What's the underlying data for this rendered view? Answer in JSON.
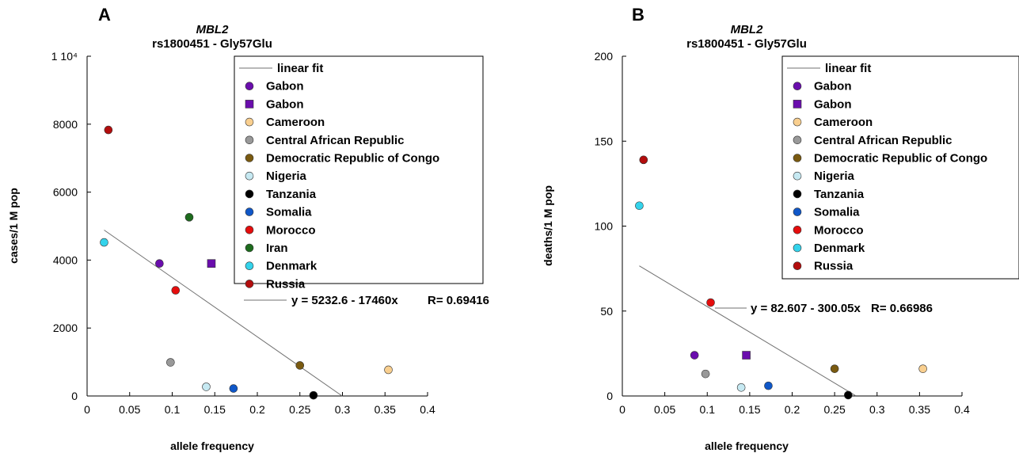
{
  "legend_items": [
    {
      "label": "linear fit",
      "marker": "line",
      "color": "#707070"
    },
    {
      "label": "Gabon",
      "marker": "circle",
      "color": "#6a0dad"
    },
    {
      "label": "Gabon",
      "marker": "square",
      "color": "#6a0dad"
    },
    {
      "label": "Cameroon",
      "marker": "circle",
      "color": "#f9cf8f"
    },
    {
      "label": "Central African Republic",
      "marker": "circle",
      "color": "#999999"
    },
    {
      "label": "Democratic Republic of Congo",
      "marker": "circle",
      "color": "#7a5a10"
    },
    {
      "label": "Nigeria",
      "marker": "circle",
      "color": "#c6e9f2"
    },
    {
      "label": "Tanzania",
      "marker": "circle",
      "color": "#000000"
    },
    {
      "label": "Somalia",
      "marker": "circle",
      "color": "#0f57c8"
    },
    {
      "label": "Morocco",
      "marker": "circle",
      "color": "#e50d0d"
    },
    {
      "label": "Iran",
      "marker": "circle",
      "color": "#1d6b1d"
    },
    {
      "label": "Denmark",
      "marker": "circle",
      "color": "#34d3eb"
    },
    {
      "label": "Russia",
      "marker": "circle",
      "color": "#b30d0d"
    }
  ],
  "chart_data": [
    {
      "panel": "A",
      "type": "scatter",
      "title_line1": "MBL2",
      "title_line2": "rs1800451 - Gly57Glu",
      "xlabel": "allele frequency",
      "ylabel": "cases/1 M pop",
      "xlim": [
        0,
        0.4
      ],
      "ylim": [
        0,
        10000
      ],
      "xticks": [
        "0",
        "0.05",
        "0.1",
        "0.15",
        "0.2",
        "0.25",
        "0.3",
        "0.35",
        "0.4"
      ],
      "yticks": [
        "0",
        "2000",
        "4000",
        "6000",
        "8000",
        "1 10⁴"
      ],
      "legend_placement": "top-right",
      "grid": false,
      "fit_equation": "y = 5232.6 - 17460x",
      "fit_r": "R= 0.69416",
      "fit": {
        "intercept": 5232.6,
        "slope": -17460,
        "x_start": 0.02,
        "x_end": 0.3
      },
      "points": [
        {
          "series": "Gabon",
          "marker": "circle",
          "x": 0.085,
          "y": 3900
        },
        {
          "series": "Gabon",
          "marker": "square",
          "x": 0.146,
          "y": 3900
        },
        {
          "series": "Cameroon",
          "marker": "circle",
          "x": 0.354,
          "y": 770
        },
        {
          "series": "Central African Republic",
          "marker": "circle",
          "x": 0.098,
          "y": 990
        },
        {
          "series": "Democratic Republic of Congo",
          "marker": "circle",
          "x": 0.25,
          "y": 900
        },
        {
          "series": "Nigeria",
          "marker": "circle",
          "x": 0.14,
          "y": 270
        },
        {
          "series": "Tanzania",
          "marker": "circle",
          "x": 0.266,
          "y": 20
        },
        {
          "series": "Somalia",
          "marker": "circle",
          "x": 0.172,
          "y": 220
        },
        {
          "series": "Morocco",
          "marker": "circle",
          "x": 0.104,
          "y": 3110
        },
        {
          "series": "Iran",
          "marker": "circle",
          "x": 0.12,
          "y": 5260
        },
        {
          "series": "Denmark",
          "marker": "circle",
          "x": 0.02,
          "y": 4520
        },
        {
          "series": "Russia",
          "marker": "circle",
          "x": 0.025,
          "y": 7830
        }
      ]
    },
    {
      "panel": "B",
      "type": "scatter",
      "title_line1": "MBL2",
      "title_line2": "rs1800451 - Gly57Glu",
      "xlabel": "allele frequency",
      "ylabel": "deaths/1 M pop",
      "xlim": [
        0,
        0.4
      ],
      "ylim": [
        0,
        200
      ],
      "xticks": [
        "0",
        "0.05",
        "0.1",
        "0.15",
        "0.2",
        "0.25",
        "0.3",
        "0.35",
        "0.4"
      ],
      "yticks": [
        "0",
        "50",
        "100",
        "150",
        "200"
      ],
      "legend_placement": "top-right",
      "grid": false,
      "fit_equation": "y = 82.607 - 300.05x",
      "fit_r": "R= 0.66986",
      "fit": {
        "intercept": 82.607,
        "slope": -300.05,
        "x_start": 0.02,
        "x_end": 0.275
      },
      "points": [
        {
          "series": "Gabon",
          "marker": "circle",
          "x": 0.085,
          "y": 24
        },
        {
          "series": "Gabon",
          "marker": "square",
          "x": 0.146,
          "y": 24
        },
        {
          "series": "Cameroon",
          "marker": "circle",
          "x": 0.354,
          "y": 16
        },
        {
          "series": "Central African Republic",
          "marker": "circle",
          "x": 0.098,
          "y": 13
        },
        {
          "series": "Democratic Republic of Congo",
          "marker": "circle",
          "x": 0.25,
          "y": 16
        },
        {
          "series": "Nigeria",
          "marker": "circle",
          "x": 0.14,
          "y": 5
        },
        {
          "series": "Tanzania",
          "marker": "circle",
          "x": 0.266,
          "y": 0.5
        },
        {
          "series": "Somalia",
          "marker": "circle",
          "x": 0.172,
          "y": 6
        },
        {
          "series": "Morocco",
          "marker": "circle",
          "x": 0.104,
          "y": 55
        },
        {
          "series": "Denmark",
          "marker": "circle",
          "x": 0.02,
          "y": 112
        },
        {
          "series": "Russia",
          "marker": "circle",
          "x": 0.025,
          "y": 139
        }
      ]
    }
  ]
}
